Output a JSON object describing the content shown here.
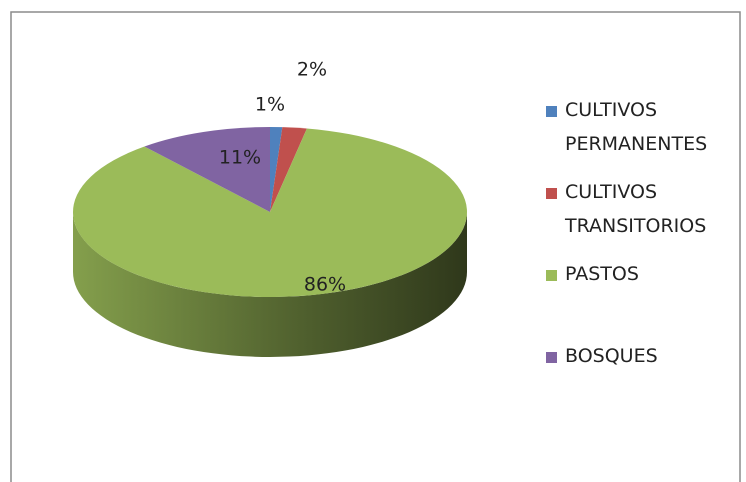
{
  "chart_data": {
    "type": "pie",
    "categories": [
      "CULTIVOS PERMANENTES",
      "CULTIVOS TRANSITORIOS",
      "PASTOS",
      "BOSQUES"
    ],
    "values": [
      1,
      2,
      86,
      11
    ],
    "value_labels": [
      "1%",
      "2%",
      "86%",
      "11%"
    ],
    "colors": [
      "#4f81bd",
      "#c0504d",
      "#9bbb59",
      "#8064a2"
    ],
    "legend": "right"
  }
}
